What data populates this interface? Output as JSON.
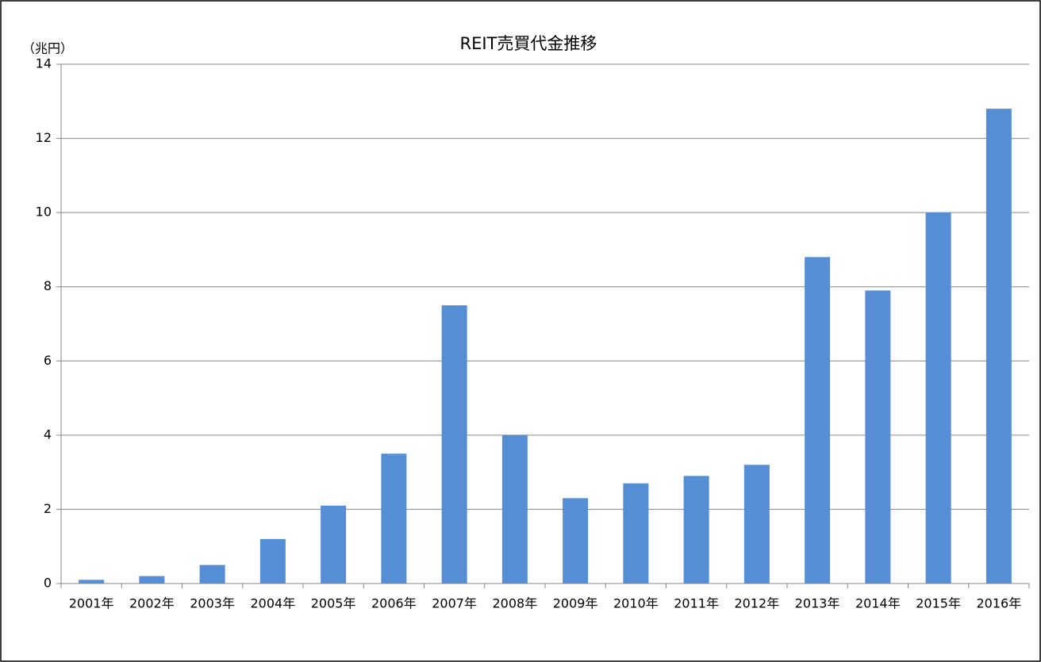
{
  "chart_data": {
    "type": "bar",
    "title": "REIT売買代金推移",
    "y_label": "（兆円）",
    "categories": [
      "2001年",
      "2002年",
      "2003年",
      "2004年",
      "2005年",
      "2006年",
      "2007年",
      "2008年",
      "2009年",
      "2010年",
      "2011年",
      "2012年",
      "2013年",
      "2014年",
      "2015年",
      "2016年"
    ],
    "values": [
      0.1,
      0.2,
      0.5,
      1.2,
      2.1,
      3.5,
      7.5,
      4.0,
      2.3,
      2.7,
      2.9,
      3.2,
      8.8,
      7.9,
      10.0,
      12.8
    ],
    "color": "#558ed5",
    "ylim": [
      0,
      14
    ],
    "yticks": [
      0,
      2,
      4,
      6,
      8,
      10,
      12,
      14
    ],
    "grid": true
  }
}
